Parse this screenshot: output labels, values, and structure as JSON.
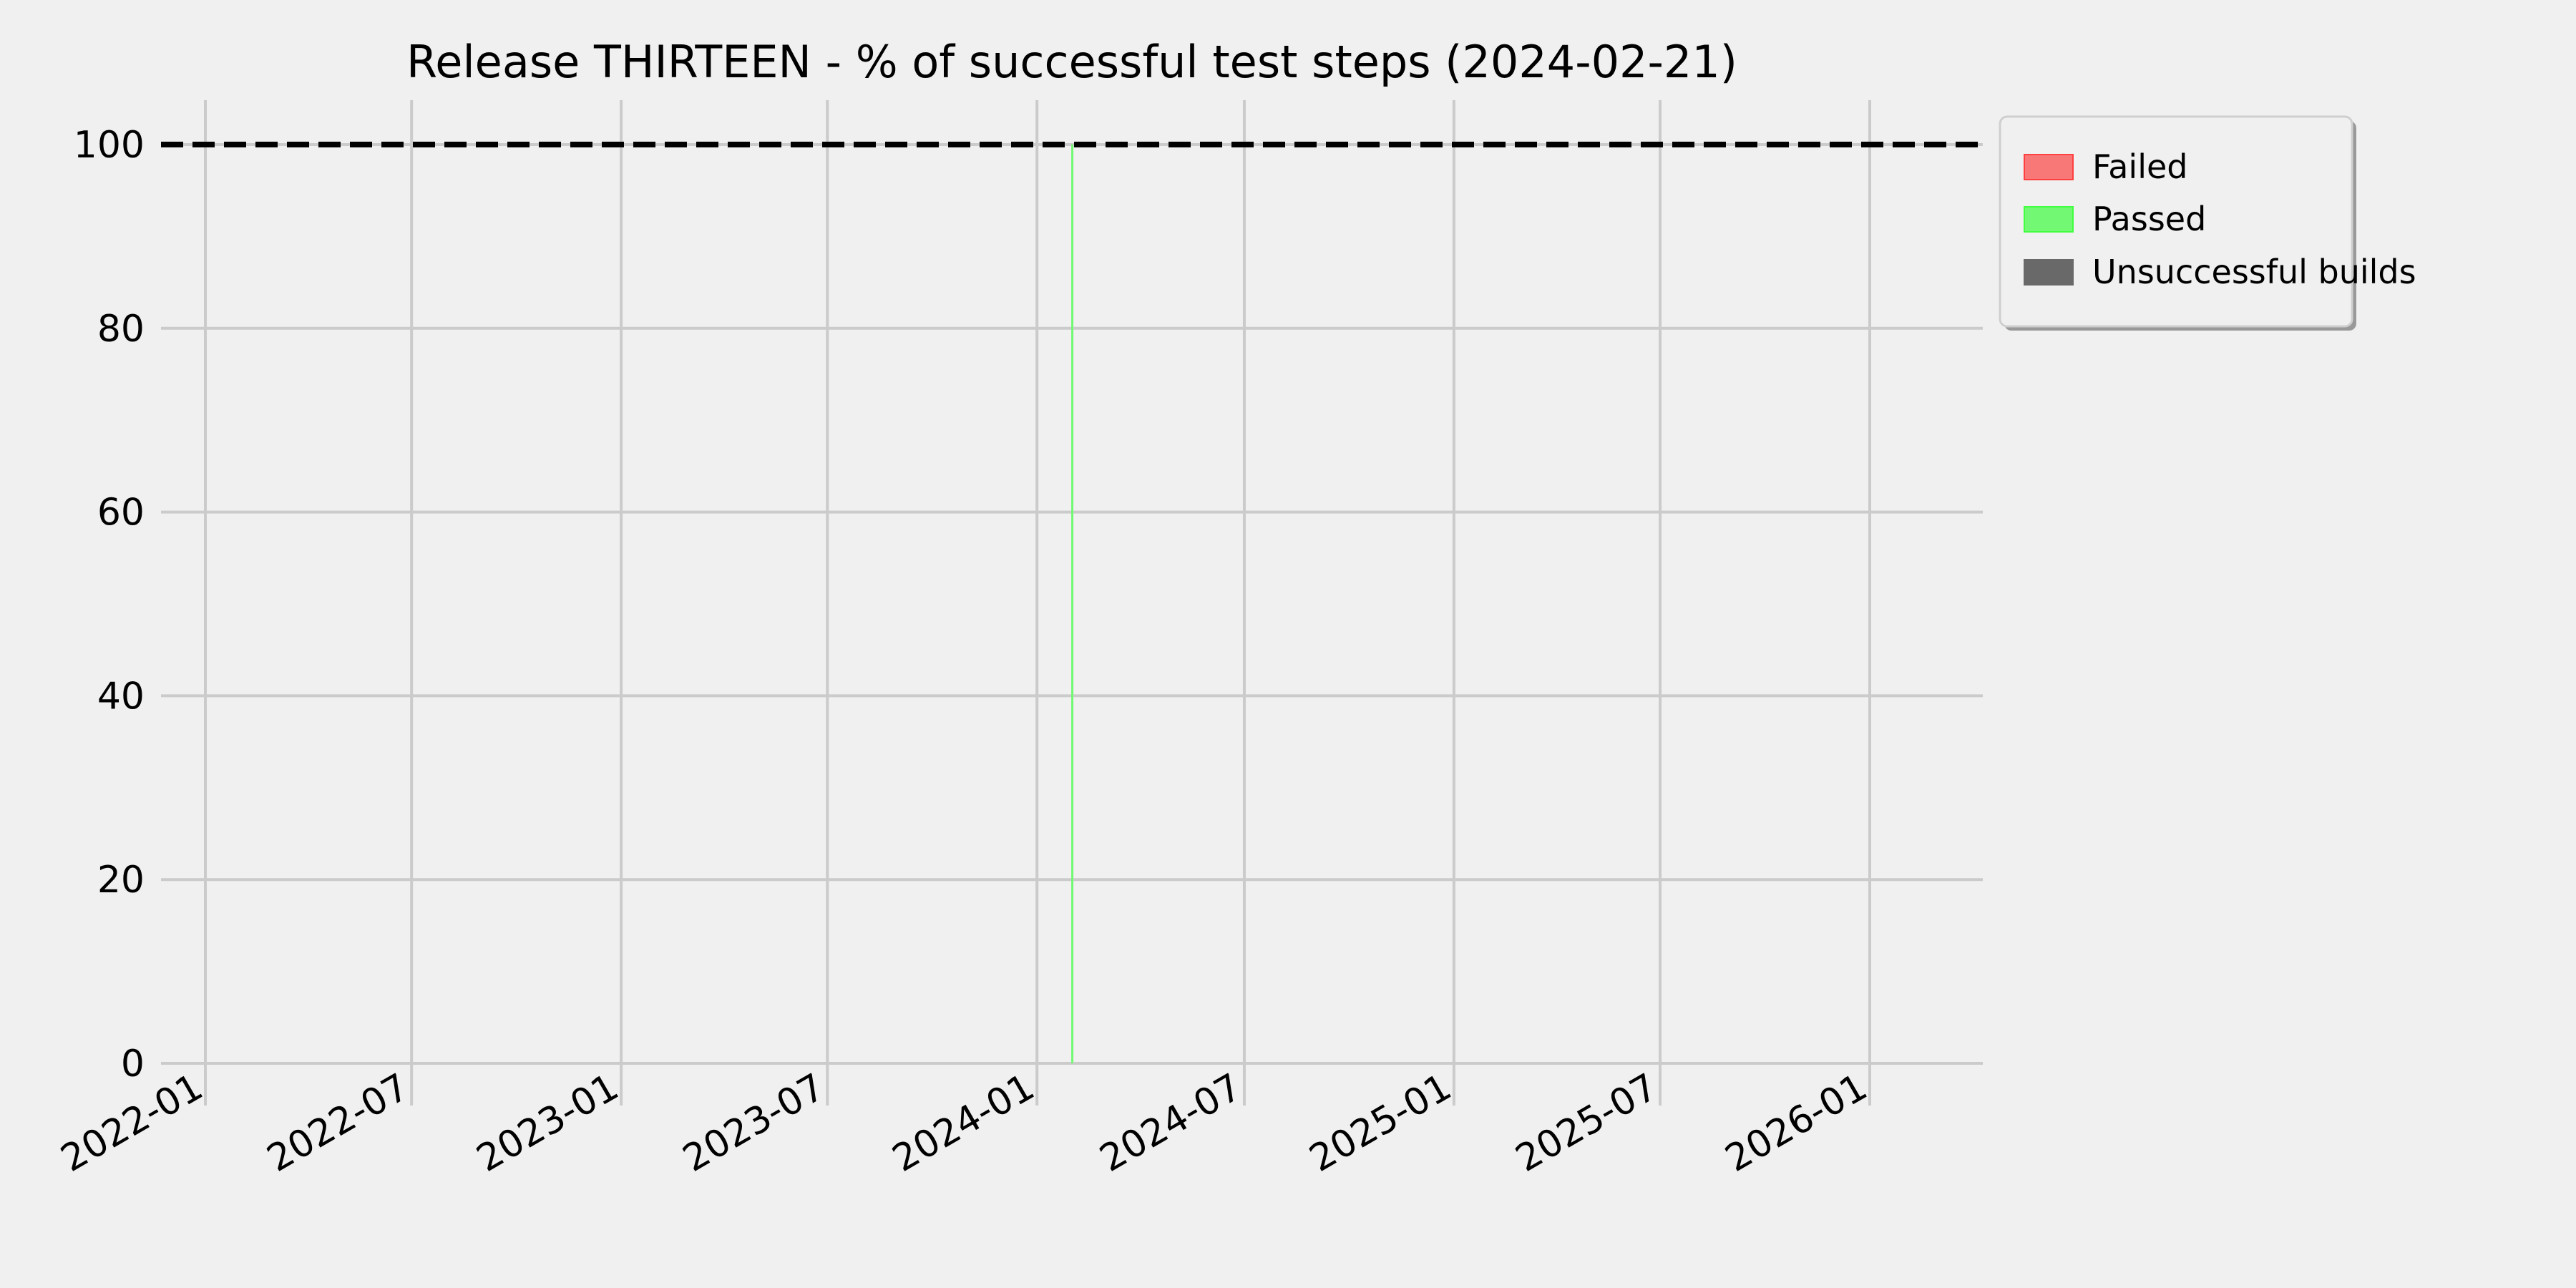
{
  "chart_data": {
    "type": "bar",
    "title": "Release THIRTEEN - % of successful test steps (2024-02-21)",
    "xlabel": "",
    "ylabel": "",
    "x_axis": "date",
    "xlim": [
      "2021-11-01",
      "2026-05-01"
    ],
    "ylim": [
      -5,
      105
    ],
    "x_ticks": [
      "2022-01",
      "2022-07",
      "2023-01",
      "2023-07",
      "2024-01",
      "2024-07",
      "2025-01",
      "2025-07",
      "2026-01"
    ],
    "y_ticks": [
      0,
      20,
      40,
      60,
      80,
      100
    ],
    "grid": true,
    "legend_position": "outside-top-right",
    "reference_line": {
      "y": 100,
      "style": "dashed",
      "color": "#000000"
    },
    "series": [
      {
        "name": "Failed",
        "color": "#f87878",
        "edge": "#ff4040",
        "points": [
          {
            "x": "2024-02-01",
            "y": 0
          }
        ]
      },
      {
        "name": "Passed",
        "color": "#72f872",
        "edge": "#40ff40",
        "points": [
          {
            "x": "2024-02-01",
            "y": 100
          }
        ]
      },
      {
        "name": "Unsuccessful builds",
        "color": "#696969",
        "edge": "#696969",
        "points": []
      }
    ]
  }
}
